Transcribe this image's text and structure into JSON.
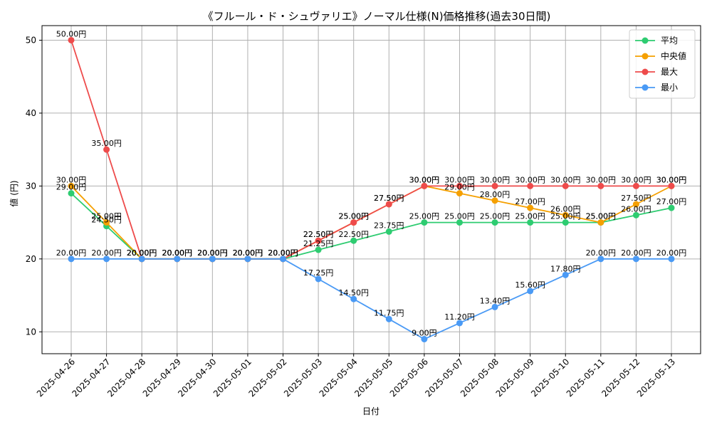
{
  "chart_data": {
    "type": "line",
    "title": "《フルール・ド・シュヴァリエ》ノーマル仕様(N)価格推移(過去30日間)",
    "xlabel": "日付",
    "ylabel": "値 (円)",
    "categories": [
      "2025-04-26",
      "2025-04-27",
      "2025-04-28",
      "2025-04-29",
      "2025-04-30",
      "2025-05-01",
      "2025-05-02",
      "2025-05-03",
      "2025-05-04",
      "2025-05-05",
      "2025-05-06",
      "2025-05-07",
      "2025-05-08",
      "2025-05-09",
      "2025-05-10",
      "2025-05-11",
      "2025-05-12",
      "2025-05-13"
    ],
    "ylim": [
      7,
      52
    ],
    "yticks": [
      10,
      20,
      30,
      40,
      50
    ],
    "grid": true,
    "legend_position": "top-right",
    "value_suffix": "円",
    "series": [
      {
        "name": "平均",
        "color": "#2ecc71",
        "values": [
          29.0,
          24.5,
          20.0,
          20.0,
          20.0,
          20.0,
          20.0,
          21.25,
          22.5,
          23.75,
          25.0,
          25.0,
          25.0,
          25.0,
          25.0,
          25.0,
          26.0,
          27.0
        ]
      },
      {
        "name": "中央値",
        "color": "#f5a000",
        "values": [
          30.0,
          25.0,
          20.0,
          20.0,
          20.0,
          20.0,
          20.0,
          22.5,
          25.0,
          27.5,
          30.0,
          29.0,
          28.0,
          27.0,
          26.0,
          25.0,
          27.5,
          30.0
        ]
      },
      {
        "name": "最大",
        "color": "#ee4b4b",
        "values": [
          50.0,
          35.0,
          20.0,
          20.0,
          20.0,
          20.0,
          20.0,
          22.5,
          25.0,
          27.5,
          30.0,
          30.0,
          30.0,
          30.0,
          30.0,
          30.0,
          30.0,
          30.0
        ]
      },
      {
        "name": "最小",
        "color": "#4a9af5",
        "values": [
          20.0,
          20.0,
          20.0,
          20.0,
          20.0,
          20.0,
          20.0,
          17.25,
          14.5,
          11.75,
          9.0,
          11.2,
          13.4,
          15.6,
          17.8,
          20.0,
          20.0,
          20.0
        ]
      }
    ]
  }
}
